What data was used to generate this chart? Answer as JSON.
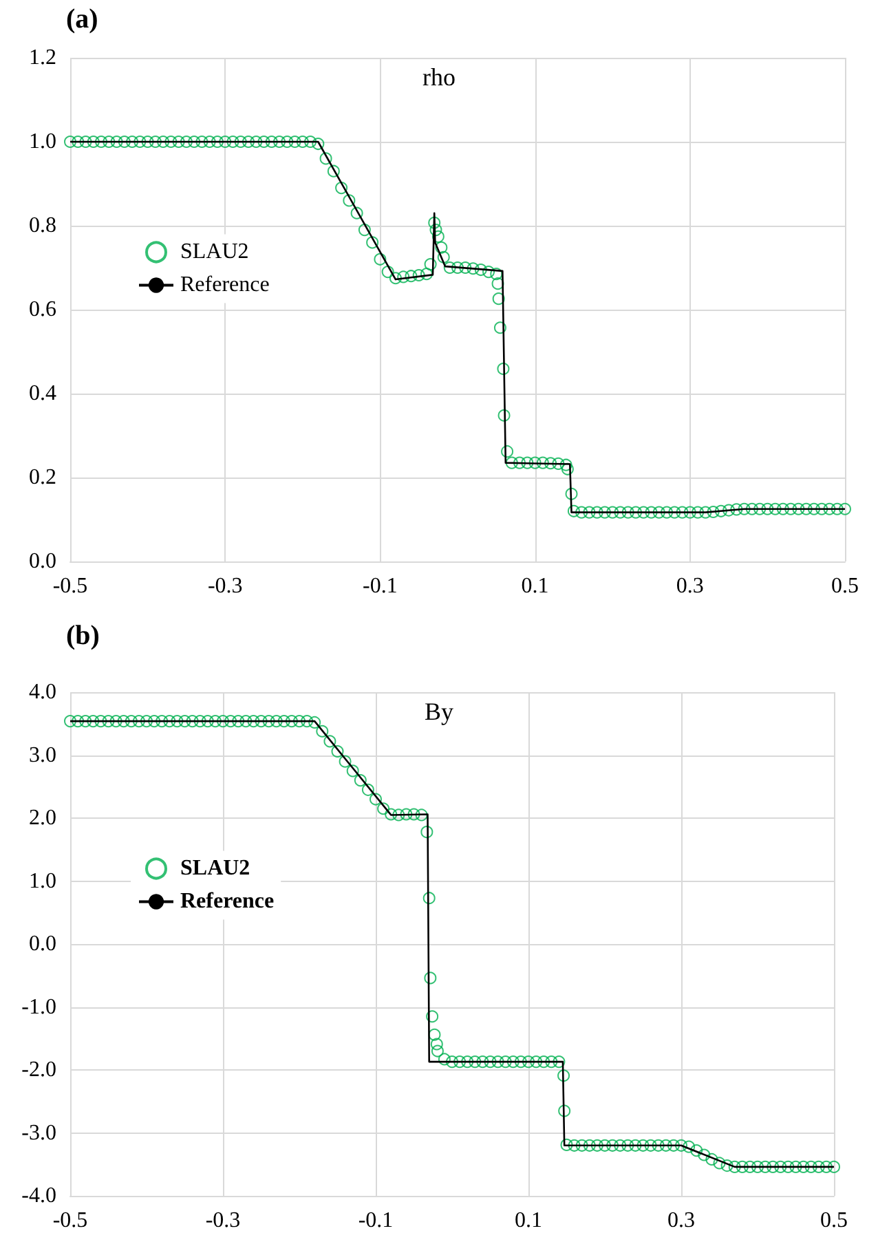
{
  "chart_data": [
    {
      "type": "scatter",
      "title": "rho",
      "annotations": [
        "(a)"
      ],
      "grid": true,
      "legend": "left",
      "line_style": "solid",
      "xlim": [
        -0.5,
        0.5
      ],
      "xticks": [
        -0.5,
        -0.3,
        -0.1,
        0.1,
        0.3,
        0.5
      ],
      "ylim": [
        0,
        1.2
      ],
      "yticks": [
        {
          "value": 0,
          "label": "0.0"
        },
        0.2,
        0.4,
        0.6,
        0.8,
        {
          "value": 1,
          "label": "1.0"
        },
        1.2
      ],
      "series": [
        {
          "name": "SLAU2",
          "marker": "circle",
          "color": "#00b050",
          "x": [
            -0.5,
            -0.49,
            -0.48,
            -0.47,
            -0.46,
            -0.45,
            -0.44,
            -0.43,
            -0.42,
            -0.41,
            -0.4,
            -0.39,
            -0.38,
            -0.37,
            -0.36,
            -0.35,
            -0.34,
            -0.33,
            -0.32,
            -0.31,
            -0.3,
            -0.29,
            -0.28,
            -0.27,
            -0.26,
            -0.25,
            -0.24,
            -0.23,
            -0.22,
            -0.21,
            -0.2,
            -0.19,
            -0.18,
            -0.17,
            -0.16,
            -0.15,
            -0.14,
            -0.13,
            -0.12,
            -0.11,
            -0.1,
            -0.09,
            -0.08,
            -0.07,
            -0.06,
            -0.05,
            -0.04,
            -0.035,
            -0.03,
            -0.028,
            -0.025,
            -0.021,
            -0.018,
            -0.01,
            0,
            0.01,
            0.02,
            0.03,
            0.04,
            0.05,
            0.052,
            0.053,
            0.055,
            0.059,
            0.06,
            0.064,
            0.07,
            0.08,
            0.09,
            0.1,
            0.11,
            0.12,
            0.13,
            0.14,
            0.142,
            0.147,
            0.15,
            0.16,
            0.17,
            0.18,
            0.19,
            0.2,
            0.21,
            0.22,
            0.23,
            0.24,
            0.25,
            0.26,
            0.27,
            0.28,
            0.29,
            0.3,
            0.31,
            0.32,
            0.33,
            0.34,
            0.35,
            0.36,
            0.37,
            0.38,
            0.39,
            0.4,
            0.41,
            0.42,
            0.43,
            0.44,
            0.45,
            0.46,
            0.47,
            0.48,
            0.49,
            0.5
          ],
          "values": [
            1,
            1,
            1,
            1,
            1,
            1,
            1,
            1,
            1,
            1,
            1,
            1,
            1,
            1,
            1,
            1,
            1,
            1,
            1,
            1,
            1,
            1,
            1,
            1,
            1,
            1,
            1,
            1,
            1,
            1,
            1,
            1,
            0.995,
            0.96,
            0.93,
            0.89,
            0.86,
            0.83,
            0.79,
            0.76,
            0.72,
            0.69,
            0.675,
            0.678,
            0.68,
            0.682,
            0.685,
            0.708,
            0.807,
            0.79,
            0.774,
            0.748,
            0.725,
            0.7,
            0.7,
            0.7,
            0.698,
            0.695,
            0.69,
            0.685,
            0.662,
            0.626,
            0.557,
            0.459,
            0.348,
            0.262,
            0.235,
            0.235,
            0.235,
            0.235,
            0.235,
            0.234,
            0.233,
            0.23,
            0.22,
            0.161,
            0.12,
            0.117,
            0.117,
            0.117,
            0.117,
            0.117,
            0.117,
            0.117,
            0.117,
            0.117,
            0.117,
            0.117,
            0.117,
            0.117,
            0.117,
            0.117,
            0.117,
            0.117,
            0.118,
            0.12,
            0.122,
            0.124,
            0.125,
            0.125,
            0.125,
            0.125,
            0.125,
            0.125,
            0.125,
            0.125,
            0.125,
            0.125,
            0.125,
            0.125,
            0.125,
            0.125
          ]
        },
        {
          "name": "Reference",
          "type": "line",
          "marker": "none",
          "color": "#000000",
          "x": [
            -0.5,
            -0.18,
            -0.08,
            -0.032,
            -0.03,
            -0.029,
            -0.016,
            0.058,
            0.062,
            0.145,
            0.147,
            0.32,
            0.37,
            0.5
          ],
          "values": [
            1,
            1,
            0.672,
            0.683,
            0.83,
            0.76,
            0.703,
            0.692,
            0.235,
            0.232,
            0.117,
            0.117,
            0.125,
            0.125
          ]
        }
      ]
    },
    {
      "type": "scatter",
      "title": "By",
      "annotations": [
        "(b)"
      ],
      "grid": true,
      "legend": "left",
      "line_style": "solid",
      "xlim": [
        -0.5,
        0.5
      ],
      "xticks": [
        -0.5,
        -0.3,
        -0.1,
        0.1,
        0.3,
        0.5
      ],
      "ylim": [
        -4,
        4
      ],
      "yticks": [
        {
          "value": -4,
          "label": "-4.0"
        },
        {
          "value": -3,
          "label": "-3.0"
        },
        {
          "value": -2,
          "label": "-2.0"
        },
        {
          "value": -1,
          "label": "-1.0"
        },
        {
          "value": 0,
          "label": "0.0"
        },
        {
          "value": 1,
          "label": "1.0"
        },
        {
          "value": 2,
          "label": "2.0"
        },
        {
          "value": 3,
          "label": "3.0"
        },
        {
          "value": 4,
          "label": "4.0"
        }
      ],
      "series": [
        {
          "name": "SLAU2",
          "marker": "circle",
          "color": "#00b050",
          "x": [
            -0.5,
            -0.49,
            -0.48,
            -0.47,
            -0.46,
            -0.45,
            -0.44,
            -0.43,
            -0.42,
            -0.41,
            -0.4,
            -0.39,
            -0.38,
            -0.37,
            -0.36,
            -0.35,
            -0.34,
            -0.33,
            -0.32,
            -0.31,
            -0.3,
            -0.29,
            -0.28,
            -0.27,
            -0.26,
            -0.25,
            -0.24,
            -0.23,
            -0.22,
            -0.21,
            -0.2,
            -0.19,
            -0.18,
            -0.17,
            -0.16,
            -0.15,
            -0.14,
            -0.13,
            -0.12,
            -0.11,
            -0.1,
            -0.09,
            -0.08,
            -0.07,
            -0.06,
            -0.05,
            -0.04,
            -0.033,
            -0.03,
            -0.0285,
            -0.026,
            -0.023,
            -0.02,
            -0.019,
            -0.01,
            0,
            0.01,
            0.02,
            0.03,
            0.04,
            0.05,
            0.06,
            0.07,
            0.08,
            0.09,
            0.1,
            0.11,
            0.12,
            0.13,
            0.14,
            0.146,
            0.147,
            0.15,
            0.16,
            0.17,
            0.18,
            0.19,
            0.2,
            0.21,
            0.22,
            0.23,
            0.24,
            0.25,
            0.26,
            0.27,
            0.28,
            0.29,
            0.3,
            0.31,
            0.32,
            0.33,
            0.34,
            0.35,
            0.36,
            0.37,
            0.38,
            0.39,
            0.4,
            0.41,
            0.42,
            0.43,
            0.44,
            0.45,
            0.46,
            0.47,
            0.48,
            0.49,
            0.5
          ],
          "values": [
            3.54,
            3.54,
            3.54,
            3.54,
            3.54,
            3.54,
            3.54,
            3.54,
            3.54,
            3.54,
            3.54,
            3.54,
            3.54,
            3.54,
            3.54,
            3.54,
            3.54,
            3.54,
            3.54,
            3.54,
            3.54,
            3.54,
            3.54,
            3.54,
            3.54,
            3.54,
            3.54,
            3.54,
            3.54,
            3.54,
            3.54,
            3.54,
            3.52,
            3.38,
            3.22,
            3.06,
            2.9,
            2.75,
            2.6,
            2.45,
            2.3,
            2.15,
            2.06,
            2.05,
            2.06,
            2.06,
            2.05,
            1.78,
            0.73,
            -0.54,
            -1.15,
            -1.44,
            -1.59,
            -1.7,
            -1.83,
            -1.87,
            -1.87,
            -1.87,
            -1.87,
            -1.87,
            -1.87,
            -1.87,
            -1.87,
            -1.87,
            -1.87,
            -1.87,
            -1.87,
            -1.87,
            -1.87,
            -1.87,
            -2.09,
            -2.65,
            -3.19,
            -3.2,
            -3.2,
            -3.2,
            -3.2,
            -3.2,
            -3.2,
            -3.2,
            -3.2,
            -3.2,
            -3.2,
            -3.2,
            -3.2,
            -3.2,
            -3.2,
            -3.2,
            -3.22,
            -3.28,
            -3.35,
            -3.42,
            -3.48,
            -3.52,
            -3.54,
            -3.54,
            -3.54,
            -3.54,
            -3.54,
            -3.54,
            -3.54,
            -3.54,
            -3.54,
            -3.54,
            -3.54,
            -3.54,
            -3.54,
            -3.54
          ]
        },
        {
          "name": "Reference",
          "type": "line",
          "marker": "none",
          "color": "#000000",
          "x": [
            -0.5,
            -0.18,
            -0.08,
            -0.032,
            -0.03,
            0.145,
            0.147,
            0.3,
            0.37,
            0.5
          ],
          "values": [
            3.54,
            3.54,
            2.05,
            2.06,
            -1.87,
            -1.87,
            -3.2,
            -3.2,
            -3.54,
            -3.54
          ]
        }
      ]
    }
  ]
}
